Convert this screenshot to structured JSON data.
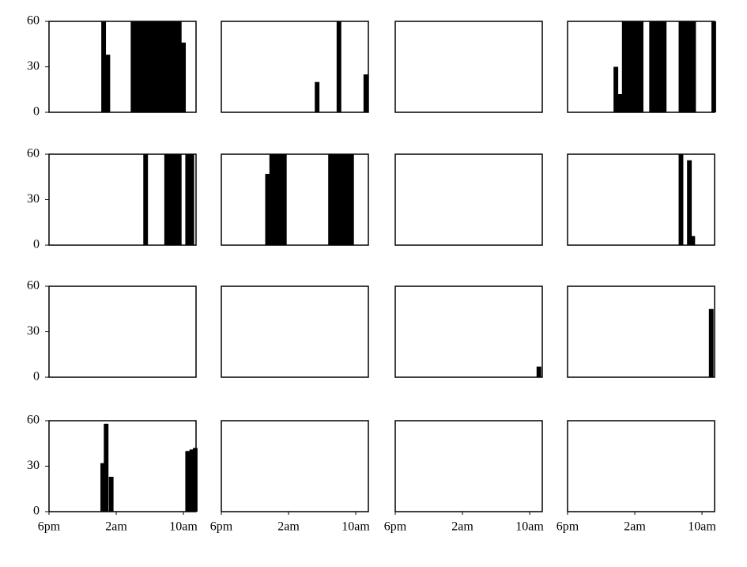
{
  "chart_data": [
    {
      "type": "bar",
      "x": [
        6.5,
        7,
        10,
        10.5,
        11,
        11.5,
        12,
        12.5,
        13,
        13.5,
        14,
        14.5,
        15,
        15.5,
        16
      ],
      "values": [
        60,
        38,
        60,
        60,
        60,
        60,
        60,
        60,
        60,
        60,
        60,
        60,
        60,
        60,
        46
      ],
      "xlim": [
        0,
        17.5
      ],
      "ylim": [
        0,
        60
      ],
      "yticks": [
        0,
        30,
        60
      ],
      "color": "#000000"
    },
    {
      "type": "bar",
      "x": [
        11.4,
        14,
        17.2
      ],
      "values": [
        20,
        60,
        25
      ],
      "xlim": [
        0,
        17.5
      ],
      "ylim": [
        0,
        60
      ],
      "color": "#000000"
    },
    {
      "type": "bar",
      "x": [],
      "values": [],
      "xlim": [
        0,
        17.5
      ],
      "ylim": [
        0,
        60
      ],
      "color": "#000000"
    },
    {
      "type": "bar",
      "x": [
        5.75,
        6.25,
        6.75,
        7.25,
        7.75,
        8.25,
        8.75,
        10,
        10.5,
        11,
        11.5,
        13.5,
        14,
        14.5,
        15,
        17.4
      ],
      "values": [
        30,
        12,
        60,
        60,
        60,
        60,
        60,
        60,
        60,
        60,
        60,
        60,
        60,
        60,
        60,
        60
      ],
      "xlim": [
        0,
        17.5
      ],
      "ylim": [
        0,
        60
      ],
      "color": "#000000"
    },
    {
      "type": "bar",
      "x": [
        11.5,
        14,
        14.5,
        15,
        15.5,
        16.5,
        17
      ],
      "values": [
        60,
        60,
        60,
        60,
        60,
        60,
        60
      ],
      "xlim": [
        0,
        17.5
      ],
      "ylim": [
        0,
        60
      ],
      "yticks": [
        0,
        30,
        60
      ],
      "color": "#000000"
    },
    {
      "type": "bar",
      "x": [
        5.5,
        6,
        6.5,
        7,
        7.5,
        13,
        13.5,
        14,
        14.5,
        15,
        15.5
      ],
      "values": [
        47,
        60,
        60,
        60,
        60,
        60,
        60,
        60,
        60,
        60,
        60
      ],
      "xlim": [
        0,
        17.5
      ],
      "ylim": [
        0,
        60
      ],
      "color": "#000000"
    },
    {
      "type": "bar",
      "x": [],
      "values": [],
      "xlim": [
        0,
        17.5
      ],
      "ylim": [
        0,
        60
      ],
      "color": "#000000"
    },
    {
      "type": "bar",
      "x": [
        13.5,
        14.5,
        14.9
      ],
      "values": [
        60,
        56,
        6
      ],
      "xlim": [
        0,
        17.5
      ],
      "ylim": [
        0,
        60
      ],
      "color": "#000000"
    },
    {
      "type": "bar",
      "x": [],
      "values": [],
      "xlim": [
        0,
        17.5
      ],
      "ylim": [
        0,
        60
      ],
      "yticks": [
        0,
        30,
        60
      ],
      "color": "#000000"
    },
    {
      "type": "bar",
      "x": [],
      "values": [],
      "xlim": [
        0,
        17.5
      ],
      "ylim": [
        0,
        60
      ],
      "color": "#000000"
    },
    {
      "type": "bar",
      "x": [
        17.1
      ],
      "values": [
        7
      ],
      "xlim": [
        0,
        17.5
      ],
      "ylim": [
        0,
        60
      ],
      "color": "#000000"
    },
    {
      "type": "bar",
      "x": [
        17.1
      ],
      "values": [
        45
      ],
      "xlim": [
        0,
        17.5
      ],
      "ylim": [
        0,
        60
      ],
      "color": "#000000"
    },
    {
      "type": "bar",
      "x": [
        6.4,
        6.8,
        7.4,
        16.5,
        17,
        17.4
      ],
      "values": [
        32,
        58,
        23,
        40,
        41,
        42
      ],
      "xlim": [
        0,
        17.5
      ],
      "ylim": [
        0,
        60
      ],
      "yticks": [
        0,
        30,
        60
      ],
      "xticks": [
        {
          "value": 0,
          "label": "6pm"
        },
        {
          "value": 8,
          "label": "2am"
        },
        {
          "value": 16,
          "label": "10am"
        }
      ],
      "color": "#000000"
    },
    {
      "type": "bar",
      "x": [],
      "values": [],
      "xlim": [
        0,
        17.5
      ],
      "ylim": [
        0,
        60
      ],
      "xticks": [
        {
          "value": 0,
          "label": "6pm"
        },
        {
          "value": 8,
          "label": "2am"
        },
        {
          "value": 16,
          "label": "10am"
        }
      ],
      "color": "#000000"
    },
    {
      "type": "bar",
      "x": [],
      "values": [],
      "xlim": [
        0,
        17.5
      ],
      "ylim": [
        0,
        60
      ],
      "xticks": [
        {
          "value": 0,
          "label": "6pm"
        },
        {
          "value": 8,
          "label": "2am"
        },
        {
          "value": 16,
          "label": "10am"
        }
      ],
      "color": "#000000"
    },
    {
      "type": "bar",
      "x": [],
      "values": [],
      "xlim": [
        0,
        17.5
      ],
      "ylim": [
        0,
        60
      ],
      "xticks": [
        {
          "value": 0,
          "label": "6pm"
        },
        {
          "value": 8,
          "label": "2am"
        },
        {
          "value": 16,
          "label": "10am"
        }
      ],
      "color": "#000000"
    }
  ]
}
